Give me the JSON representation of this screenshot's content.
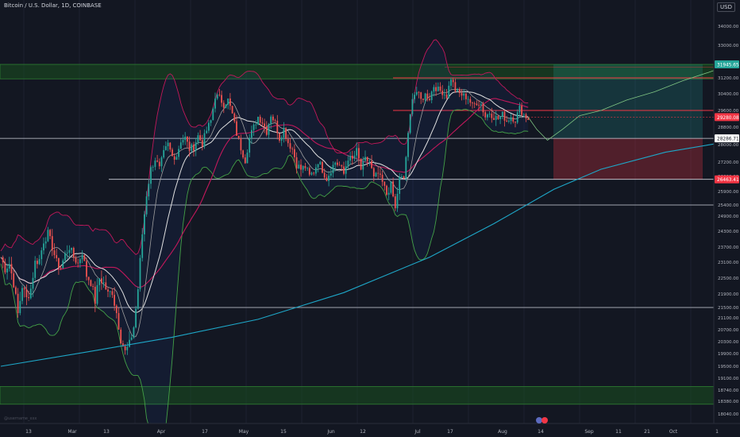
{
  "header": {
    "symbol_title": "Bitcoin / U.S. Dollar, 1D, COINBASE",
    "currency": "USD"
  },
  "watermark": "@username_xxx",
  "colors": {
    "background": "#131722",
    "up": "#26a69a",
    "down": "#ef5350",
    "upper_band": "#c2185b",
    "lower_band": "#43a047",
    "ema200": "#1ea7c8",
    "ma": "#e0e0e0",
    "zone": "#1b5e20",
    "accent_red": "#f23645"
  },
  "chart_data": {
    "type": "candlestick",
    "ylim": [
      17900,
      35200
    ],
    "y_ticks": [
      34000,
      33000,
      31200,
      30400,
      29600,
      28800,
      28000,
      27200,
      26600,
      25900,
      25400,
      24900,
      24300,
      23700,
      23100,
      22500,
      21900,
      21500,
      21100,
      20700,
      20300,
      19900,
      19500,
      19100,
      18740,
      18380,
      18040,
      17900
    ],
    "y_ticks_display": [
      "34000.00",
      "33000.00",
      "31200.00",
      "30400.00",
      "29600.00",
      "28800.00",
      "28000.00",
      "27200.00",
      "26600.00",
      "25900.00",
      "25400.00",
      "24900.00",
      "24300.00",
      "23700.00",
      "23100.00",
      "22500.00",
      "21900.00",
      "21500.00",
      "21100.00",
      "20700.00",
      "20300.00",
      "19900.00",
      "19500.00",
      "19100.00",
      "18740.00",
      "18380.00",
      "18040.00",
      "17900.00"
    ],
    "x_ticks": [
      "13",
      "Mar",
      "13",
      "Apr",
      "17",
      "May",
      "15",
      "Jun",
      "12",
      "Jul",
      "17",
      "Aug",
      "14",
      "Sep",
      "11",
      "21",
      "Oct",
      "1"
    ],
    "price_labels": [
      {
        "price": 31945.65,
        "text": "31945.65",
        "color": "#26a69a"
      },
      {
        "price": 29280.08,
        "text": "29280.08",
        "color": "#f23645"
      },
      {
        "price": 28286.71,
        "text": "28286.71",
        "color": "#ffffff"
      },
      {
        "price": 26463.41,
        "text": "26463.41",
        "color": "#f23645"
      }
    ],
    "horizontal_levels": [
      31200,
      29600,
      28286.71,
      26463.41,
      25400,
      21500
    ],
    "zones": [
      {
        "name": "resistance-zone",
        "from": 31150,
        "to": 31945.65
      },
      {
        "name": "support-zone",
        "from": 18300,
        "to": 18850
      }
    ],
    "position": {
      "entry": 28286.71,
      "target": 31945.65,
      "stop": 26463.41
    },
    "close_series": [
      [
        0,
        23300
      ],
      [
        2,
        22850
      ],
      [
        4,
        23050
      ],
      [
        6,
        22300
      ],
      [
        8,
        21250
      ],
      [
        10,
        22200
      ],
      [
        12,
        21750
      ],
      [
        14,
        22100
      ],
      [
        16,
        23100
      ],
      [
        18,
        23200
      ],
      [
        20,
        23950
      ],
      [
        22,
        24200
      ],
      [
        24,
        23700
      ],
      [
        26,
        23100
      ],
      [
        28,
        22900
      ],
      [
        30,
        23400
      ],
      [
        32,
        23700
      ],
      [
        34,
        23300
      ],
      [
        36,
        23050
      ],
      [
        38,
        23500
      ],
      [
        40,
        22600
      ],
      [
        42,
        22350
      ],
      [
        44,
        21700
      ],
      [
        46,
        22500
      ],
      [
        48,
        22300
      ],
      [
        50,
        21900
      ],
      [
        52,
        22000
      ],
      [
        54,
        21300
      ],
      [
        56,
        20400
      ],
      [
        58,
        19950
      ],
      [
        60,
        20200
      ],
      [
        62,
        20800
      ],
      [
        64,
        22100
      ],
      [
        66,
        24200
      ],
      [
        68,
        25800
      ],
      [
        70,
        26900
      ],
      [
        72,
        27350
      ],
      [
        74,
        26900
      ],
      [
        76,
        27600
      ],
      [
        78,
        28000
      ],
      [
        80,
        27450
      ],
      [
        82,
        27500
      ],
      [
        84,
        28200
      ],
      [
        86,
        28300
      ],
      [
        88,
        27800
      ],
      [
        90,
        27900
      ],
      [
        92,
        28400
      ],
      [
        94,
        28050
      ],
      [
        96,
        28650
      ],
      [
        98,
        29100
      ],
      [
        100,
        30300
      ],
      [
        102,
        30200
      ],
      [
        104,
        29900
      ],
      [
        106,
        30100
      ],
      [
        108,
        29400
      ],
      [
        110,
        28500
      ],
      [
        112,
        27850
      ],
      [
        114,
        27300
      ],
      [
        116,
        28300
      ],
      [
        118,
        28800
      ],
      [
        120,
        29300
      ],
      [
        122,
        29050
      ],
      [
        124,
        28600
      ],
      [
        126,
        29400
      ],
      [
        128,
        29000
      ],
      [
        130,
        28300
      ],
      [
        132,
        28700
      ],
      [
        134,
        28100
      ],
      [
        136,
        27800
      ],
      [
        138,
        27100
      ],
      [
        140,
        26900
      ],
      [
        142,
        27000
      ],
      [
        144,
        26600
      ],
      [
        146,
        26800
      ],
      [
        148,
        27250
      ],
      [
        150,
        26900
      ],
      [
        152,
        26500
      ],
      [
        154,
        26900
      ],
      [
        156,
        27200
      ],
      [
        158,
        27050
      ],
      [
        160,
        26700
      ],
      [
        162,
        27400
      ],
      [
        164,
        27300
      ],
      [
        166,
        27700
      ],
      [
        168,
        26900
      ],
      [
        170,
        27300
      ],
      [
        172,
        27250
      ],
      [
        174,
        26500
      ],
      [
        176,
        26700
      ],
      [
        178,
        26300
      ],
      [
        180,
        25800
      ],
      [
        182,
        26200
      ],
      [
        184,
        25200
      ],
      [
        186,
        26500
      ],
      [
        188,
        26500
      ],
      [
        190,
        28400
      ],
      [
        192,
        30300
      ],
      [
        194,
        30500
      ],
      [
        196,
        30100
      ],
      [
        198,
        30350
      ],
      [
        200,
        30200
      ],
      [
        202,
        30800
      ],
      [
        204,
        30600
      ],
      [
        206,
        30500
      ],
      [
        208,
        30300
      ],
      [
        210,
        31200
      ],
      [
        212,
        30600
      ],
      [
        214,
        30400
      ],
      [
        216,
        30300
      ],
      [
        218,
        30200
      ],
      [
        220,
        29800
      ],
      [
        222,
        30000
      ],
      [
        224,
        29900
      ],
      [
        226,
        29300
      ],
      [
        228,
        29500
      ],
      [
        230,
        29300
      ],
      [
        232,
        29200
      ],
      [
        234,
        29400
      ],
      [
        236,
        29100
      ],
      [
        238,
        29300
      ],
      [
        240,
        29150
      ],
      [
        242,
        29700
      ],
      [
        244,
        29400
      ],
      [
        246,
        29200
      ]
    ],
    "ema200_series": [
      [
        0,
        19500
      ],
      [
        40,
        19950
      ],
      [
        80,
        20450
      ],
      [
        120,
        21050
      ],
      [
        160,
        21950
      ],
      [
        200,
        23300
      ],
      [
        230,
        24600
      ],
      [
        258,
        26000
      ],
      [
        280,
        26900
      ],
      [
        310,
        27650
      ],
      [
        340,
        28150
      ],
      [
        355,
        28380
      ]
    ],
    "projection_series": [
      [
        246,
        29280
      ],
      [
        250,
        28700
      ],
      [
        255,
        28200
      ],
      [
        262,
        28700
      ],
      [
        270,
        29350
      ],
      [
        280,
        29600
      ],
      [
        292,
        30100
      ],
      [
        305,
        30500
      ],
      [
        318,
        31050
      ],
      [
        330,
        31500
      ],
      [
        342,
        32000
      ],
      [
        355,
        32700
      ]
    ]
  }
}
